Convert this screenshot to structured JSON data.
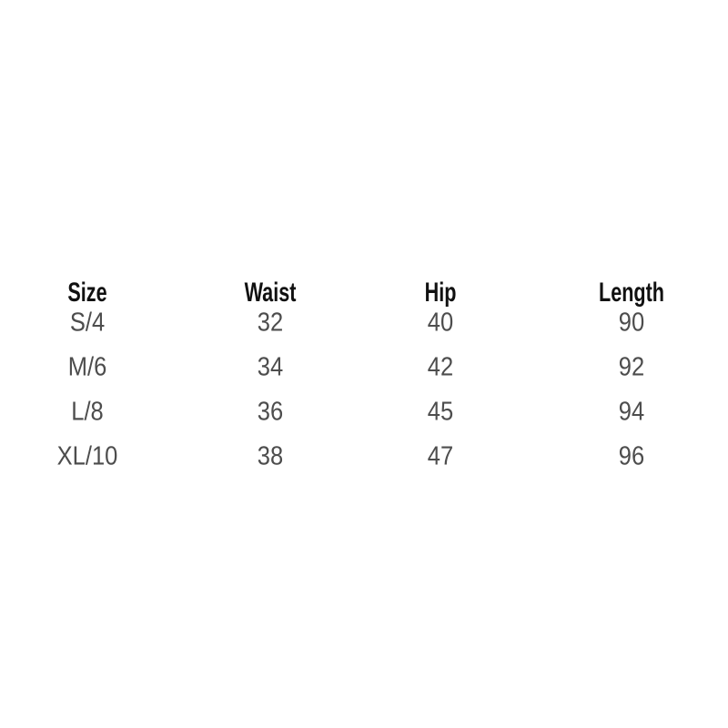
{
  "page": {
    "background_color": "#ffffff",
    "header_text_color": "#111111",
    "value_text_color": "#4d4d4d"
  },
  "chart_data": {
    "type": "table",
    "title": "",
    "columns": [
      "Size",
      "Waist",
      "Hip",
      "Length"
    ],
    "rows": [
      [
        "S/4",
        "32",
        "40",
        "90"
      ],
      [
        "M/6",
        "34",
        "42",
        "92"
      ],
      [
        "L/8",
        "36",
        "45",
        "94"
      ],
      [
        "XL/10",
        "38",
        "47",
        "96"
      ]
    ],
    "units": "cm-implied, not shown",
    "legend_position": "none",
    "grid": false
  }
}
